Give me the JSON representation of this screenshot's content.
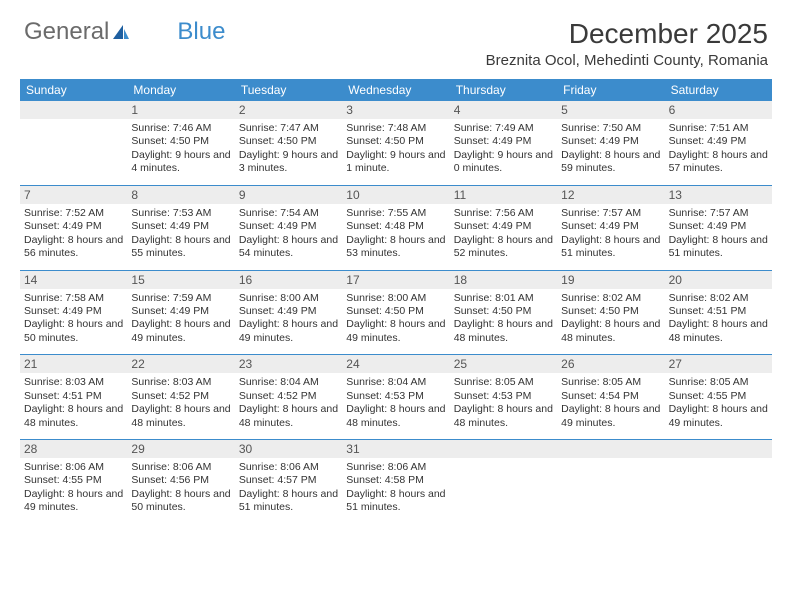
{
  "logo": {
    "text1": "General",
    "text2": "Blue"
  },
  "title": {
    "month": "December 2025",
    "location": "Breznita Ocol, Mehedinti County, Romania"
  },
  "colors": {
    "accent": "#3c8ccc",
    "daynum_bg": "#ededed",
    "text": "#333333",
    "logo_gray": "#6b6b6b"
  },
  "day_names": [
    "Sunday",
    "Monday",
    "Tuesday",
    "Wednesday",
    "Thursday",
    "Friday",
    "Saturday"
  ],
  "weeks": [
    [
      {
        "day": "",
        "sunrise": "",
        "sunset": "",
        "daylight": ""
      },
      {
        "day": "1",
        "sunrise": "Sunrise: 7:46 AM",
        "sunset": "Sunset: 4:50 PM",
        "daylight": "Daylight: 9 hours and 4 minutes."
      },
      {
        "day": "2",
        "sunrise": "Sunrise: 7:47 AM",
        "sunset": "Sunset: 4:50 PM",
        "daylight": "Daylight: 9 hours and 3 minutes."
      },
      {
        "day": "3",
        "sunrise": "Sunrise: 7:48 AM",
        "sunset": "Sunset: 4:50 PM",
        "daylight": "Daylight: 9 hours and 1 minute."
      },
      {
        "day": "4",
        "sunrise": "Sunrise: 7:49 AM",
        "sunset": "Sunset: 4:49 PM",
        "daylight": "Daylight: 9 hours and 0 minutes."
      },
      {
        "day": "5",
        "sunrise": "Sunrise: 7:50 AM",
        "sunset": "Sunset: 4:49 PM",
        "daylight": "Daylight: 8 hours and 59 minutes."
      },
      {
        "day": "6",
        "sunrise": "Sunrise: 7:51 AM",
        "sunset": "Sunset: 4:49 PM",
        "daylight": "Daylight: 8 hours and 57 minutes."
      }
    ],
    [
      {
        "day": "7",
        "sunrise": "Sunrise: 7:52 AM",
        "sunset": "Sunset: 4:49 PM",
        "daylight": "Daylight: 8 hours and 56 minutes."
      },
      {
        "day": "8",
        "sunrise": "Sunrise: 7:53 AM",
        "sunset": "Sunset: 4:49 PM",
        "daylight": "Daylight: 8 hours and 55 minutes."
      },
      {
        "day": "9",
        "sunrise": "Sunrise: 7:54 AM",
        "sunset": "Sunset: 4:49 PM",
        "daylight": "Daylight: 8 hours and 54 minutes."
      },
      {
        "day": "10",
        "sunrise": "Sunrise: 7:55 AM",
        "sunset": "Sunset: 4:48 PM",
        "daylight": "Daylight: 8 hours and 53 minutes."
      },
      {
        "day": "11",
        "sunrise": "Sunrise: 7:56 AM",
        "sunset": "Sunset: 4:49 PM",
        "daylight": "Daylight: 8 hours and 52 minutes."
      },
      {
        "day": "12",
        "sunrise": "Sunrise: 7:57 AM",
        "sunset": "Sunset: 4:49 PM",
        "daylight": "Daylight: 8 hours and 51 minutes."
      },
      {
        "day": "13",
        "sunrise": "Sunrise: 7:57 AM",
        "sunset": "Sunset: 4:49 PM",
        "daylight": "Daylight: 8 hours and 51 minutes."
      }
    ],
    [
      {
        "day": "14",
        "sunrise": "Sunrise: 7:58 AM",
        "sunset": "Sunset: 4:49 PM",
        "daylight": "Daylight: 8 hours and 50 minutes."
      },
      {
        "day": "15",
        "sunrise": "Sunrise: 7:59 AM",
        "sunset": "Sunset: 4:49 PM",
        "daylight": "Daylight: 8 hours and 49 minutes."
      },
      {
        "day": "16",
        "sunrise": "Sunrise: 8:00 AM",
        "sunset": "Sunset: 4:49 PM",
        "daylight": "Daylight: 8 hours and 49 minutes."
      },
      {
        "day": "17",
        "sunrise": "Sunrise: 8:00 AM",
        "sunset": "Sunset: 4:50 PM",
        "daylight": "Daylight: 8 hours and 49 minutes."
      },
      {
        "day": "18",
        "sunrise": "Sunrise: 8:01 AM",
        "sunset": "Sunset: 4:50 PM",
        "daylight": "Daylight: 8 hours and 48 minutes."
      },
      {
        "day": "19",
        "sunrise": "Sunrise: 8:02 AM",
        "sunset": "Sunset: 4:50 PM",
        "daylight": "Daylight: 8 hours and 48 minutes."
      },
      {
        "day": "20",
        "sunrise": "Sunrise: 8:02 AM",
        "sunset": "Sunset: 4:51 PM",
        "daylight": "Daylight: 8 hours and 48 minutes."
      }
    ],
    [
      {
        "day": "21",
        "sunrise": "Sunrise: 8:03 AM",
        "sunset": "Sunset: 4:51 PM",
        "daylight": "Daylight: 8 hours and 48 minutes."
      },
      {
        "day": "22",
        "sunrise": "Sunrise: 8:03 AM",
        "sunset": "Sunset: 4:52 PM",
        "daylight": "Daylight: 8 hours and 48 minutes."
      },
      {
        "day": "23",
        "sunrise": "Sunrise: 8:04 AM",
        "sunset": "Sunset: 4:52 PM",
        "daylight": "Daylight: 8 hours and 48 minutes."
      },
      {
        "day": "24",
        "sunrise": "Sunrise: 8:04 AM",
        "sunset": "Sunset: 4:53 PM",
        "daylight": "Daylight: 8 hours and 48 minutes."
      },
      {
        "day": "25",
        "sunrise": "Sunrise: 8:05 AM",
        "sunset": "Sunset: 4:53 PM",
        "daylight": "Daylight: 8 hours and 48 minutes."
      },
      {
        "day": "26",
        "sunrise": "Sunrise: 8:05 AM",
        "sunset": "Sunset: 4:54 PM",
        "daylight": "Daylight: 8 hours and 49 minutes."
      },
      {
        "day": "27",
        "sunrise": "Sunrise: 8:05 AM",
        "sunset": "Sunset: 4:55 PM",
        "daylight": "Daylight: 8 hours and 49 minutes."
      }
    ],
    [
      {
        "day": "28",
        "sunrise": "Sunrise: 8:06 AM",
        "sunset": "Sunset: 4:55 PM",
        "daylight": "Daylight: 8 hours and 49 minutes."
      },
      {
        "day": "29",
        "sunrise": "Sunrise: 8:06 AM",
        "sunset": "Sunset: 4:56 PM",
        "daylight": "Daylight: 8 hours and 50 minutes."
      },
      {
        "day": "30",
        "sunrise": "Sunrise: 8:06 AM",
        "sunset": "Sunset: 4:57 PM",
        "daylight": "Daylight: 8 hours and 51 minutes."
      },
      {
        "day": "31",
        "sunrise": "Sunrise: 8:06 AM",
        "sunset": "Sunset: 4:58 PM",
        "daylight": "Daylight: 8 hours and 51 minutes."
      },
      {
        "day": "",
        "sunrise": "",
        "sunset": "",
        "daylight": ""
      },
      {
        "day": "",
        "sunrise": "",
        "sunset": "",
        "daylight": ""
      },
      {
        "day": "",
        "sunrise": "",
        "sunset": "",
        "daylight": ""
      }
    ]
  ]
}
